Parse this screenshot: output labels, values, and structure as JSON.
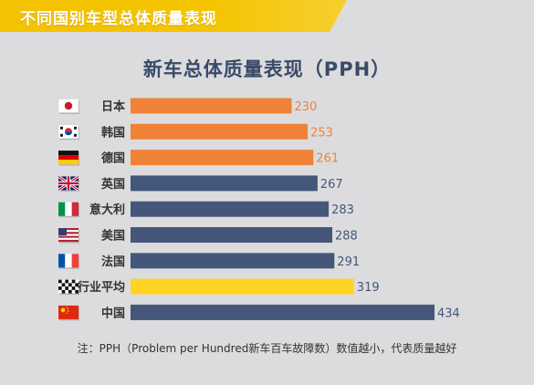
{
  "banner": {
    "title": "不同国别车型总体质量表现"
  },
  "footnote": "注：PPH（Problem per Hundred新车百车故障数）数值越小，代表质量越好",
  "colors": {
    "orange": "#f08237",
    "navy": "#44577a",
    "yellow": "#ffd322",
    "value_orange": "#f08237",
    "value_navy": "#44577a",
    "value_yellow": "#44577a",
    "label": "#333333"
  },
  "chart_data": {
    "type": "bar",
    "orientation": "horizontal",
    "title": "新车总体质量表现（PPH）",
    "xlim": [
      0,
      434
    ],
    "grid": false,
    "categories": [
      "日本",
      "韩国",
      "德国",
      "英国",
      "意大利",
      "美国",
      "法国",
      "行业平均",
      "中国"
    ],
    "values": [
      230,
      253,
      261,
      267,
      283,
      288,
      291,
      319,
      434
    ],
    "bar_colors": [
      "orange",
      "orange",
      "orange",
      "navy",
      "navy",
      "navy",
      "navy",
      "yellow",
      "navy"
    ],
    "icons": [
      "japan-flag-icon",
      "korea-flag-icon",
      "germany-flag-icon",
      "uk-flag-icon",
      "italy-flag-icon",
      "usa-flag-icon",
      "france-flag-icon",
      "checkered-flag-icon",
      "china-flag-icon"
    ]
  }
}
